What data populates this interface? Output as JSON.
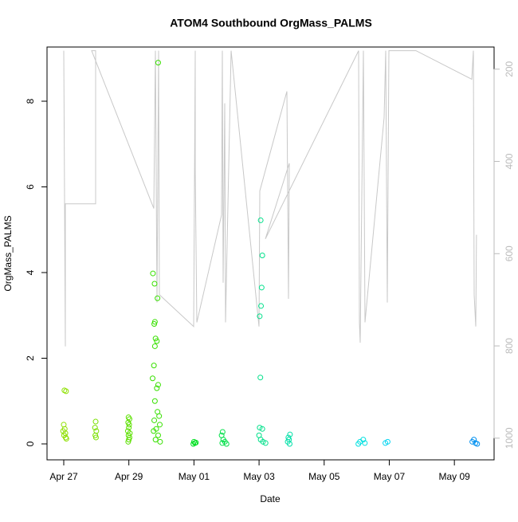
{
  "chart_data": {
    "type": "scatter",
    "title": "ATOM4 Southbound OrgMass_PALMS",
    "x_label": "Date",
    "y_label": "OrgMass_PALMS",
    "xlim": [
      -0.514,
      13.22
    ],
    "xticks": [
      {
        "value": 0,
        "label": "Apr 27"
      },
      {
        "value": 2,
        "label": "Apr 29"
      },
      {
        "value": 4,
        "label": "May 01"
      },
      {
        "value": 6,
        "label": "May 03"
      },
      {
        "value": 8,
        "label": "May 05"
      },
      {
        "value": 10,
        "label": "May 07"
      },
      {
        "value": 12,
        "label": "May 09"
      }
    ],
    "ylim": [
      -0.372,
      9.265
    ],
    "yticks": [
      0,
      2,
      4,
      6,
      8
    ],
    "y2lim": [
      1047,
      152
    ],
    "y2ticks": [
      200,
      400,
      600,
      800,
      1000
    ],
    "series": [
      {
        "style": "line",
        "axis": "y2",
        "color": "#c8c8c8",
        "x": [
          0,
          0.049,
          0.049,
          0.979,
          0.979,
          0.857,
          2.766,
          2.815,
          2.864,
          2.913,
          2.938,
          3.99,
          4.039,
          4.039,
          4.088,
          4.847,
          4.871,
          4.896,
          4.945,
          4.969,
          5.141,
          5.998,
          6.022,
          6.854,
          6.903,
          6.928,
          6.193,
          9.058,
          9.082,
          9.107,
          9.204,
          9.253,
          9.841,
          9.89,
          9.939,
          9.988,
          10.82,
          12.534,
          12.583,
          12.607,
          12.656,
          12.68
        ],
        "values": [
          160,
          801,
          492,
          492,
          160,
          160,
          502,
          160,
          706,
          160,
          689,
          758,
          160,
          421,
          749,
          516,
          160,
          663,
          274,
          749,
          160,
          758,
          464,
          248,
          698,
          404,
          568,
          160,
          749,
          793,
          160,
          749,
          305,
          160,
          706,
          160,
          160,
          222,
          160,
          689,
          758,
          559
        ]
      },
      {
        "style": "points",
        "color": "#8ee000",
        "x": [
          0.02,
          0.07,
          0,
          0.03,
          -0.02,
          0.05,
          0.01,
          0.06,
          0.08
        ],
        "values": [
          1.25,
          1.23,
          0.45,
          0.35,
          0.3,
          0.25,
          0.2,
          0.15,
          0.12
        ]
      },
      {
        "style": "points",
        "color": "#7ae000",
        "x": [
          0.98,
          0.96,
          1.0,
          0.97,
          0.99
        ],
        "values": [
          0.52,
          0.38,
          0.3,
          0.2,
          0.15
        ]
      },
      {
        "style": "points",
        "color": "#5ce000",
        "x": [
          1.99,
          2.02,
          1.98,
          2.01,
          2.0,
          1.97,
          2.03,
          1.99,
          2.02,
          2.0,
          1.98
        ],
        "values": [
          0.62,
          0.58,
          0.5,
          0.45,
          0.38,
          0.3,
          0.25,
          0.2,
          0.15,
          0.1,
          0.05
        ]
      },
      {
        "style": "points",
        "color": "#38e000",
        "x": [
          2.9,
          2.74,
          2.79,
          2.88,
          2.8,
          2.78,
          2.82,
          2.86,
          2.8,
          2.77,
          2.73,
          2.9,
          2.86,
          2.8,
          2.88,
          2.93,
          2.78,
          2.95,
          2.84,
          2.76,
          2.9,
          2.82,
          2.96
        ],
        "values": [
          8.9,
          3.98,
          3.74,
          3.4,
          2.85,
          2.8,
          2.46,
          2.4,
          2.28,
          1.83,
          1.53,
          1.38,
          1.3,
          1.0,
          0.75,
          0.65,
          0.55,
          0.45,
          0.35,
          0.3,
          0.2,
          0.1,
          0.05
        ]
      },
      {
        "style": "points",
        "color": "#00e020",
        "x": [
          4.0,
          4.03,
          3.98,
          4.06
        ],
        "values": [
          0.05,
          0.02,
          0.0,
          0.03
        ]
      },
      {
        "style": "points",
        "color": "#00e048",
        "x": [
          4.88,
          4.85,
          4.9,
          4.95,
          4.87,
          5.0
        ],
        "values": [
          0.28,
          0.2,
          0.1,
          0.05,
          0.02,
          0.0
        ]
      },
      {
        "style": "points",
        "color": "#00e08a",
        "x": [
          6.05,
          6.1,
          6.08,
          6.06,
          6.02,
          6.04,
          6.02,
          6.1,
          6.0,
          6.05,
          6.12,
          6.2
        ],
        "values": [
          5.22,
          4.4,
          3.65,
          3.22,
          2.98,
          1.55,
          0.38,
          0.35,
          0.2,
          0.1,
          0.05,
          0.02
        ]
      },
      {
        "style": "points",
        "color": "#00e0a8",
        "x": [
          6.95,
          6.9,
          6.92,
          6.88,
          6.94
        ],
        "values": [
          0.22,
          0.15,
          0.1,
          0.05,
          0.0
        ]
      },
      {
        "style": "points",
        "color": "#00e0e0",
        "x": [
          9.2,
          9.1,
          9.25,
          9.05
        ],
        "values": [
          0.1,
          0.05,
          0.02,
          0.0
        ]
      },
      {
        "style": "points",
        "color": "#00d4f0",
        "x": [
          9.95,
          9.88
        ],
        "values": [
          0.05,
          0.02
        ]
      },
      {
        "style": "points",
        "color": "#0090f0",
        "x": [
          12.6,
          12.55,
          12.65,
          12.7
        ],
        "values": [
          0.1,
          0.05,
          0.02,
          0.0
        ]
      }
    ]
  }
}
